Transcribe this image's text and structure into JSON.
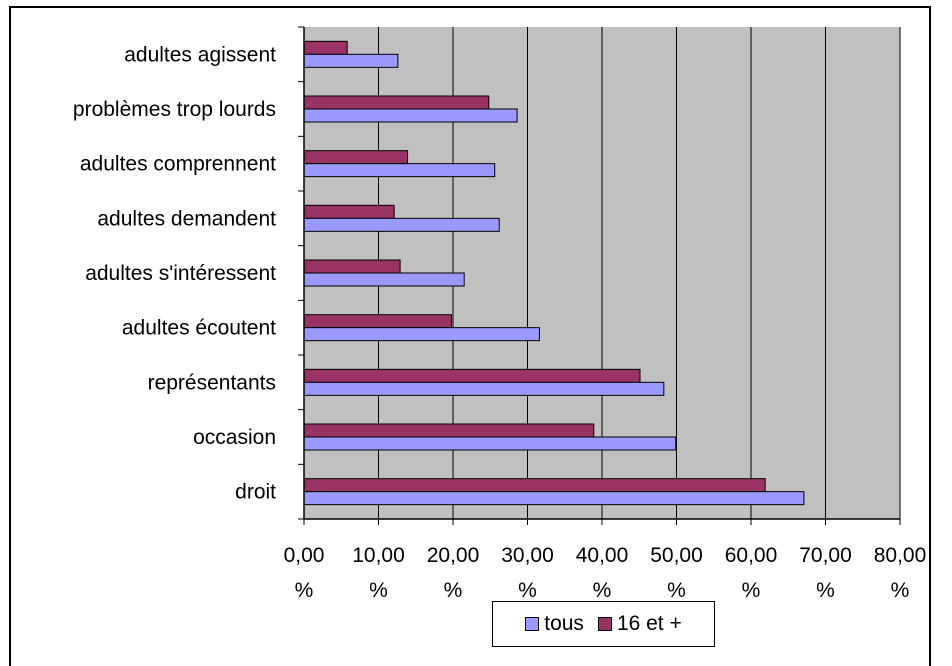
{
  "chart_data": {
    "type": "bar",
    "orientation": "horizontal",
    "title": "",
    "categories": [
      "adultes agissent",
      "problèmes trop lourds",
      "adultes comprennent",
      "adultes demandent",
      "adultes s'intéressent",
      "adultes écoutent",
      "représentants",
      "occasion",
      "droit"
    ],
    "series": [
      {
        "name": "16 et +",
        "color": "#993366",
        "values": [
          5.8,
          24.8,
          13.9,
          12.1,
          12.9,
          19.8,
          45.1,
          38.9,
          61.9
        ]
      },
      {
        "name": "tous",
        "color": "#9999ff",
        "values": [
          12.6,
          28.6,
          25.6,
          26.2,
          21.5,
          31.6,
          48.3,
          49.9,
          67.1
        ]
      }
    ],
    "xlim": [
      0,
      80
    ],
    "xticks": [
      "0,00\n%",
      "10,00\n%",
      "20,00\n%",
      "30,00\n%",
      "40,00\n%",
      "50,00\n%",
      "60,00\n%",
      "70,00\n%",
      "80,00\n%"
    ],
    "xlabel": "",
    "ylabel": "",
    "grid": true,
    "plot_background": "#c0c0c0",
    "legend_position": "bottom"
  },
  "legend": {
    "items": [
      {
        "label": "tous",
        "color": "#9999ff"
      },
      {
        "label": "16 et +",
        "color": "#993366"
      }
    ]
  }
}
